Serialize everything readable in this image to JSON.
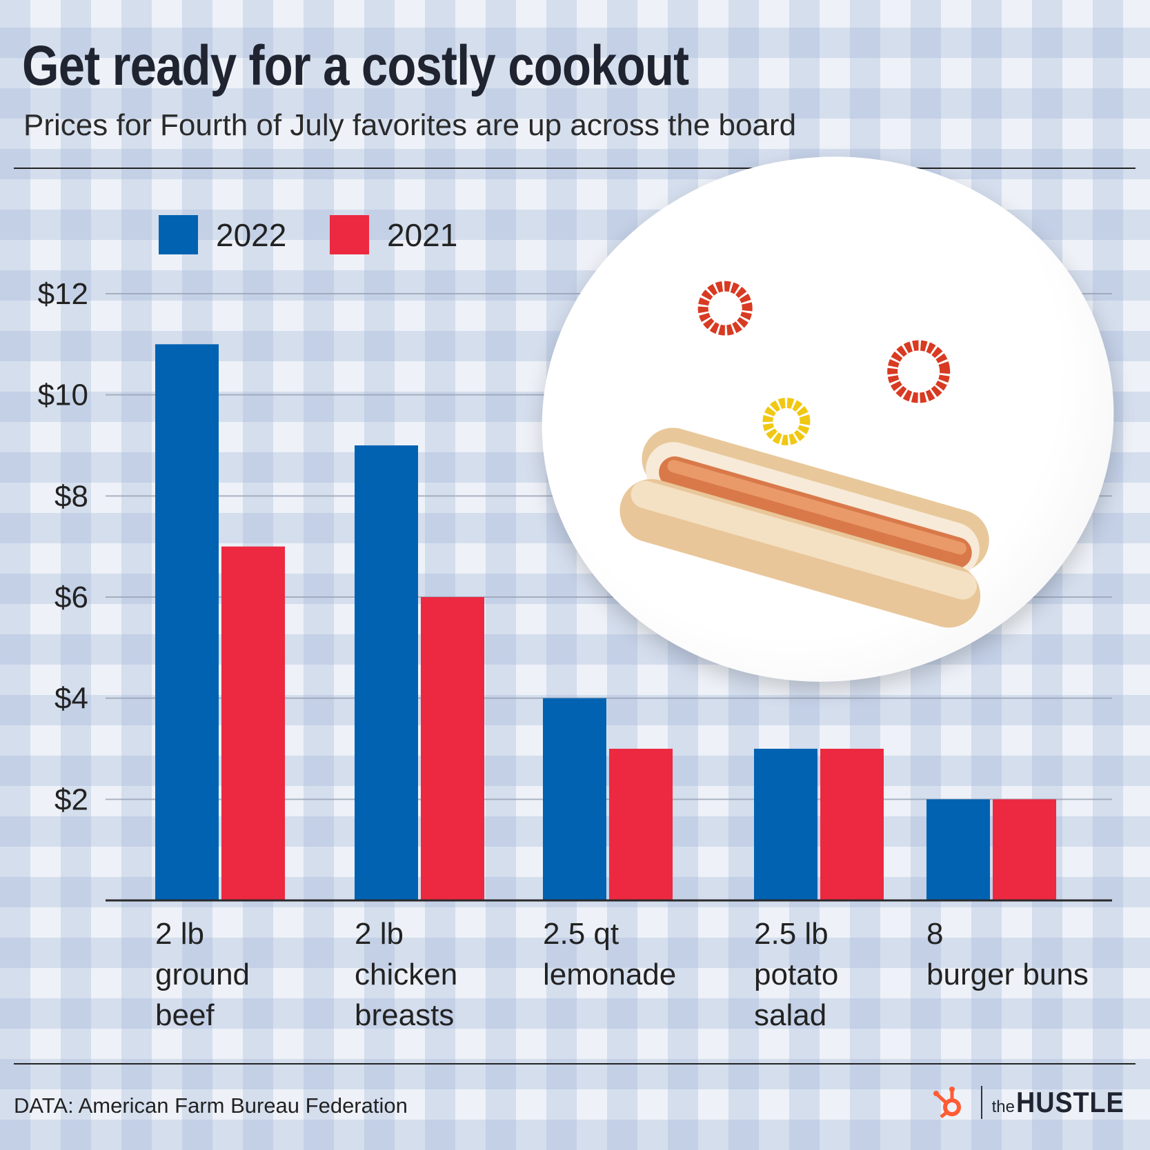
{
  "title": "Get ready for a costly cookout",
  "subtitle": "Prices for Fourth of July favorites are up across the board",
  "source": "DATA: American Farm Bureau Federation",
  "brand": {
    "prefix": "the",
    "name": "HUSTLE"
  },
  "colors": {
    "series_2022": "#0062b1",
    "series_2021": "#ec2941",
    "accent_logo": "#ff5c35"
  },
  "icons": {
    "plate_image": "plate-with-hot-dog-and-condiments",
    "brand_mark": "hubspot-sprocket-icon"
  },
  "chart_data": {
    "type": "bar",
    "title": "Get ready for a costly cookout",
    "categories": [
      [
        "2 lb",
        "ground",
        "beef"
      ],
      [
        "2 lb",
        "chicken",
        "breasts"
      ],
      [
        "2.5 qt",
        "lemonade"
      ],
      [
        "2.5 lb",
        "potato",
        "salad"
      ],
      [
        "8",
        "burger buns"
      ]
    ],
    "series": [
      {
        "name": "2022",
        "values": [
          11,
          9,
          4,
          3,
          2
        ]
      },
      {
        "name": "2021",
        "values": [
          7,
          6,
          3,
          3,
          2
        ]
      }
    ],
    "ylim": [
      0,
      12
    ],
    "yticks": [
      2,
      4,
      6,
      8,
      10,
      12
    ],
    "ytick_labels": [
      "$2",
      "$4",
      "$6",
      "$8",
      "$10",
      "$12"
    ],
    "xlabel": "",
    "ylabel": "",
    "grid": true,
    "legend_position": "top-left"
  }
}
